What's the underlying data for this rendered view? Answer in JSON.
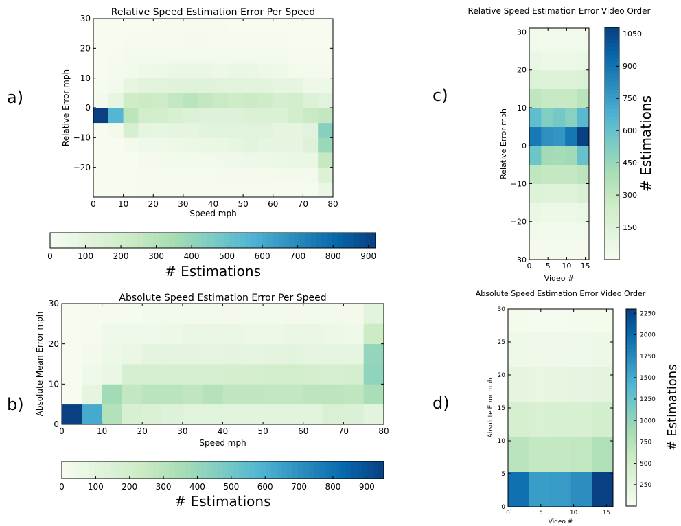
{
  "panel_labels": [
    "a)",
    "b)",
    "c)",
    "d)"
  ],
  "chart_data": [
    {
      "id": "a",
      "type": "heatmap",
      "title": "Relative Speed Estimation Error Per Speed",
      "xlabel": "Speed mph",
      "ylabel": "Relative Error mph",
      "xlim": [
        0,
        80
      ],
      "ylim": [
        -30,
        30
      ],
      "x_ticks": [
        0,
        10,
        20,
        30,
        40,
        50,
        60,
        70,
        80
      ],
      "y_ticks": [
        -20,
        -10,
        0,
        10,
        20,
        30
      ],
      "x_edges": [
        0,
        5,
        10,
        15,
        20,
        25,
        30,
        35,
        40,
        45,
        50,
        55,
        60,
        65,
        70,
        75,
        80
      ],
      "y_edges": [
        -30,
        -25,
        -20,
        -15,
        -10,
        -5,
        0,
        5,
        10,
        15,
        20,
        25,
        30
      ],
      "values": [
        [
          0,
          0,
          2,
          8,
          8,
          8,
          8,
          8,
          8,
          8,
          8,
          8,
          8,
          8,
          8,
          60
        ],
        [
          0,
          0,
          2,
          10,
          10,
          10,
          10,
          10,
          15,
          15,
          15,
          15,
          20,
          20,
          30,
          140
        ],
        [
          0,
          0,
          5,
          15,
          20,
          25,
          30,
          30,
          35,
          40,
          45,
          50,
          55,
          60,
          70,
          250
        ],
        [
          0,
          5,
          20,
          40,
          40,
          50,
          55,
          60,
          70,
          80,
          100,
          90,
          90,
          90,
          130,
          380
        ],
        [
          0,
          20,
          170,
          90,
          80,
          90,
          90,
          100,
          110,
          110,
          110,
          110,
          90,
          90,
          110,
          430
        ],
        [
          920,
          560,
          280,
          200,
          190,
          160,
          140,
          130,
          130,
          130,
          150,
          150,
          150,
          190,
          240,
          260
        ],
        [
          20,
          80,
          220,
          230,
          220,
          260,
          290,
          260,
          240,
          220,
          230,
          210,
          180,
          190,
          140,
          110
        ],
        [
          10,
          30,
          80,
          100,
          110,
          120,
          120,
          120,
          110,
          110,
          100,
          100,
          90,
          90,
          50,
          50
        ],
        [
          5,
          15,
          30,
          40,
          50,
          60,
          60,
          60,
          50,
          60,
          60,
          50,
          40,
          30,
          15,
          15
        ],
        [
          0,
          10,
          20,
          20,
          25,
          25,
          25,
          25,
          25,
          25,
          25,
          25,
          20,
          10,
          10,
          10
        ],
        [
          0,
          5,
          10,
          10,
          10,
          10,
          15,
          15,
          10,
          10,
          10,
          10,
          10,
          5,
          5,
          5
        ],
        [
          0,
          0,
          5,
          5,
          10,
          10,
          10,
          10,
          10,
          5,
          5,
          5,
          5,
          5,
          5,
          5
        ]
      ],
      "colorbar": {
        "label": "# Estimations",
        "orientation": "horizontal",
        "vmin": 0,
        "vmax": 920,
        "ticks": [
          0,
          100,
          200,
          300,
          400,
          500,
          600,
          700,
          800,
          900
        ]
      }
    },
    {
      "id": "b",
      "type": "heatmap",
      "title": "Absolute Speed Estimation Error Per Speed",
      "xlabel": "Speed mph",
      "ylabel": "Absolute Mean Error mph",
      "xlim": [
        0,
        80
      ],
      "ylim": [
        0,
        30
      ],
      "x_ticks": [
        0,
        10,
        20,
        30,
        40,
        50,
        60,
        70,
        80
      ],
      "y_ticks": [
        0,
        10,
        20,
        30
      ],
      "x_edges": [
        0,
        5,
        10,
        15,
        20,
        25,
        30,
        35,
        40,
        45,
        50,
        55,
        60,
        65,
        70,
        75,
        80
      ],
      "y_edges": [
        0,
        5,
        10,
        15,
        20,
        25,
        30
      ],
      "values": [
        [
          950,
          620,
          320,
          170,
          150,
          130,
          120,
          120,
          110,
          110,
          110,
          110,
          110,
          160,
          150,
          110
        ],
        [
          0,
          90,
          370,
          270,
          300,
          300,
          280,
          310,
          280,
          280,
          270,
          270,
          290,
          290,
          280,
          350
        ],
        [
          0,
          40,
          70,
          180,
          180,
          180,
          180,
          180,
          190,
          190,
          200,
          210,
          190,
          180,
          190,
          420
        ],
        [
          0,
          20,
          50,
          60,
          100,
          100,
          100,
          90,
          100,
          90,
          100,
          110,
          90,
          90,
          90,
          410
        ],
        [
          0,
          10,
          40,
          40,
          40,
          50,
          60,
          60,
          60,
          50,
          50,
          70,
          60,
          50,
          40,
          230
        ],
        [
          0,
          10,
          10,
          10,
          30,
          30,
          20,
          30,
          20,
          30,
          30,
          20,
          30,
          20,
          20,
          110
        ]
      ],
      "colorbar": {
        "label": "# Estimations",
        "orientation": "horizontal",
        "vmin": 0,
        "vmax": 950,
        "ticks": [
          0,
          100,
          200,
          300,
          400,
          500,
          600,
          700,
          800,
          900
        ]
      }
    },
    {
      "id": "c",
      "type": "heatmap",
      "title": "Relative Speed Estimation Error Video Order",
      "xlabel": "Video #",
      "ylabel": "Relative Error mph",
      "xlim": [
        0,
        16
      ],
      "ylim": [
        -30,
        31
      ],
      "x_ticks": [
        0,
        5,
        10,
        15
      ],
      "y_ticks": [
        -30,
        -20,
        -10,
        0,
        10,
        20,
        30
      ],
      "x_edges": [
        0,
        3.2,
        6.4,
        9.6,
        12.8,
        16
      ],
      "y_edges": [
        -30,
        -25,
        -20,
        -15,
        -10,
        -5,
        0,
        5,
        10,
        15,
        20,
        25,
        31
      ],
      "values": [
        [
          20,
          15,
          15,
          15,
          20
        ],
        [
          40,
          35,
          35,
          35,
          40
        ],
        [
          70,
          60,
          60,
          60,
          70
        ],
        [
          150,
          140,
          140,
          140,
          180
        ],
        [
          320,
          300,
          300,
          300,
          330
        ],
        [
          580,
          420,
          410,
          430,
          600
        ],
        [
          880,
          800,
          780,
          890,
          1080
        ],
        [
          620,
          520,
          560,
          500,
          640
        ],
        [
          320,
          290,
          290,
          290,
          340
        ],
        [
          160,
          150,
          150,
          150,
          170
        ],
        [
          70,
          60,
          60,
          60,
          70
        ],
        [
          40,
          30,
          30,
          30,
          40
        ]
      ],
      "colorbar": {
        "label": "# Estimations",
        "orientation": "vertical",
        "vmin": 0,
        "vmax": 1080,
        "ticks": [
          150,
          300,
          450,
          600,
          750,
          900,
          1050
        ]
      }
    },
    {
      "id": "d",
      "type": "heatmap",
      "title": "Absolute Speed Estimation Error Video Order",
      "xlabel": "Video #",
      "ylabel": "Absolute Error mph",
      "xlim": [
        0,
        16
      ],
      "ylim": [
        0,
        30
      ],
      "x_ticks": [
        0,
        5,
        10,
        15
      ],
      "y_ticks": [
        0,
        5,
        10,
        15,
        20,
        25,
        30
      ],
      "x_edges": [
        0,
        3.2,
        6.4,
        9.6,
        12.8,
        16
      ],
      "y_edges": [
        0,
        5.3,
        10.6,
        15.9,
        21.2,
        26.5,
        30
      ],
      "values": [
        [
          1950,
          1600,
          1620,
          1720,
          2300
        ],
        [
          720,
          640,
          640,
          660,
          800
        ],
        [
          440,
          390,
          400,
          410,
          470
        ],
        [
          220,
          190,
          200,
          210,
          240
        ],
        [
          110,
          90,
          90,
          100,
          120
        ],
        [
          40,
          30,
          30,
          35,
          45
        ]
      ],
      "colorbar": {
        "label": "# Estimations",
        "orientation": "vertical",
        "vmin": 0,
        "vmax": 2300,
        "ticks": [
          250,
          500,
          750,
          1000,
          1250,
          1500,
          1750,
          2000,
          2250
        ]
      }
    }
  ]
}
